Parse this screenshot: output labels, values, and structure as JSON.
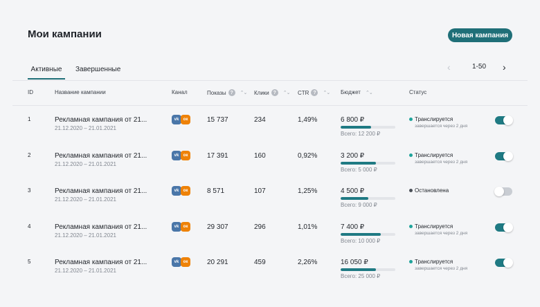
{
  "header": {
    "title": "Мои кампании",
    "new_button": "Новая кампания"
  },
  "tabs": [
    {
      "label": "Активные",
      "active": true
    },
    {
      "label": "Завершенные",
      "active": false
    }
  ],
  "pager": {
    "prev_icon": "chevron-left-icon",
    "range": "1-50",
    "next_icon": "chevron-right-icon"
  },
  "columns": {
    "id": "ID",
    "name": "Название кампании",
    "channel": "Канал",
    "impressions": "Показы",
    "clicks": "Клики",
    "ctr": "CTR",
    "budget": "Бюджет",
    "status": "Статус",
    "help_glyph": "?",
    "sort_glyph": "⌃⌄"
  },
  "channel_badges": {
    "vk": "vk",
    "ok": "ок"
  },
  "colors": {
    "accent": "#1f6f78",
    "vk": "#4a76a8",
    "ok": "#ee8208",
    "status_on": "#1fa39a",
    "status_off": "#4a4f57"
  },
  "rows": [
    {
      "id": "1",
      "name": "Рекламная кампания от 21...",
      "dates": "21.12.2020 – 21.01.2021",
      "impressions": "15 737",
      "clicks": "234",
      "ctr": "1,49%",
      "budget": "6 800 ₽",
      "total": "Всего: 12 200 ₽",
      "spent_fraction": 0.56,
      "status": "Транслируется",
      "ends": "завершается через 2 дня",
      "active": true
    },
    {
      "id": "2",
      "name": "Рекламная кампания от 21...",
      "dates": "21.12.2020 – 21.01.2021",
      "impressions": "17 391",
      "clicks": "160",
      "ctr": "0,92%",
      "budget": "3 200 ₽",
      "total": "Всего: 5 000 ₽",
      "spent_fraction": 0.64,
      "status": "Транслируется",
      "ends": "завершается через 2 дня",
      "active": true
    },
    {
      "id": "3",
      "name": "Рекламная кампания от 21...",
      "dates": "21.12.2020 – 21.01.2021",
      "impressions": "8 571",
      "clicks": "107",
      "ctr": "1,25%",
      "budget": "4 500 ₽",
      "total": "Всего: 9 000 ₽",
      "spent_fraction": 0.5,
      "status": "Остановлена",
      "ends": "",
      "active": false
    },
    {
      "id": "4",
      "name": "Рекламная кампания от 21...",
      "dates": "21.12.2020 – 21.01.2021",
      "impressions": "29 307",
      "clicks": "296",
      "ctr": "1,01%",
      "budget": "7 400 ₽",
      "total": "Всего: 10 000 ₽",
      "spent_fraction": 0.74,
      "status": "Транслируется",
      "ends": "завершается через 2 дня",
      "active": true
    },
    {
      "id": "5",
      "name": "Рекламная кампания от 21...",
      "dates": "21.12.2020 – 21.01.2021",
      "impressions": "20 291",
      "clicks": "459",
      "ctr": "2,26%",
      "budget": "16 050 ₽",
      "total": "Всего: 25 000 ₽",
      "spent_fraction": 0.64,
      "status": "Транслируется",
      "ends": "завершается через 2 дня",
      "active": true
    }
  ]
}
